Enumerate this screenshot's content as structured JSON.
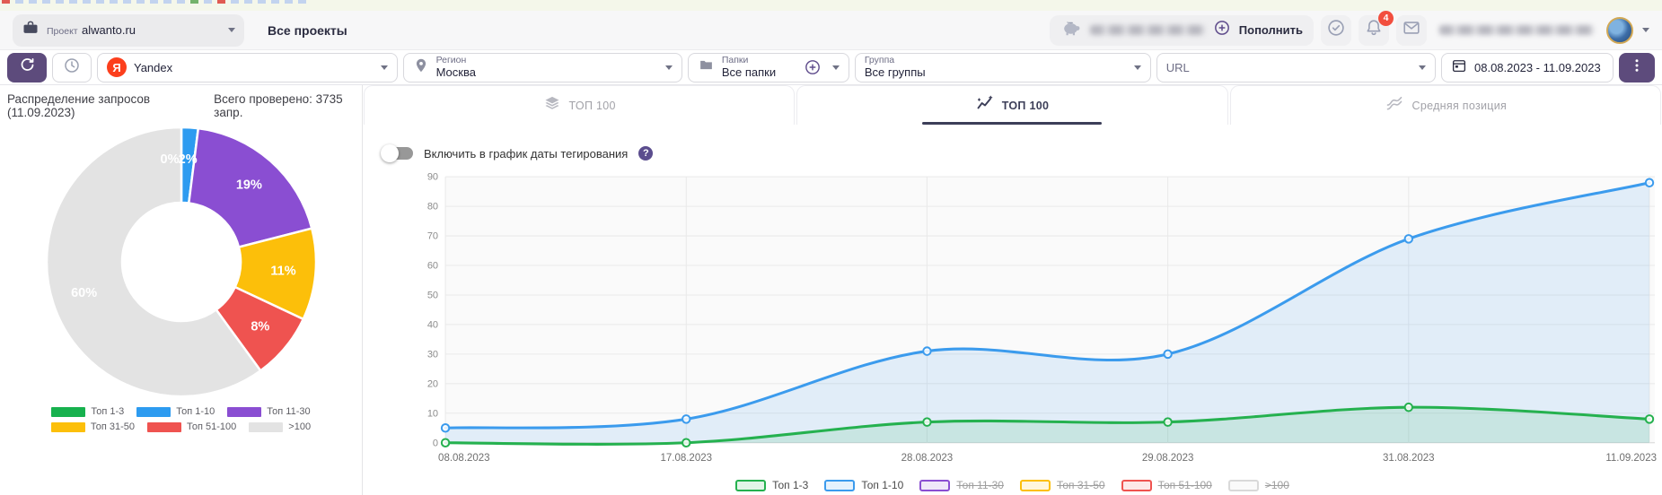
{
  "top": {
    "project_label": "Проект",
    "project_value": "alwanto.ru",
    "all_projects_label": "Все проекты",
    "topup_label": "Пополнить",
    "notification_count": "4"
  },
  "toolbar": {
    "search_engine": "Yandex",
    "region_label": "Регион",
    "region_value": "Москва",
    "folders_label": "Папки",
    "folders_value": "Все папки",
    "group_label": "Группа",
    "group_value": "Все группы",
    "url_placeholder": "URL",
    "date_range": "08.08.2023 - 11.09.2023"
  },
  "tabs": [
    {
      "label": "ТОП 100",
      "icon": "layers-icon",
      "active": false
    },
    {
      "label": "ТОП 100",
      "icon": "trend-icon",
      "active": true
    },
    {
      "label": "Средняя позиция",
      "icon": "average-position-icon",
      "active": false
    }
  ],
  "toggle": {
    "label": "Включить в график даты тегирования"
  },
  "chart_data": [
    {
      "type": "pie",
      "variant": "donut",
      "title": "Распределение запросов (11.09.2023)",
      "subtitle": "Всего проверено: 3735 запр.",
      "slices": [
        {
          "label": "Топ 1-3",
          "pct": 0,
          "color": "#17b14e"
        },
        {
          "label": "Топ 1-10",
          "pct": 2,
          "color": "#2d9bf0"
        },
        {
          "label": "Топ 11-30",
          "pct": 19,
          "color": "#8a4ed2"
        },
        {
          "label": "Топ 31-50",
          "pct": 11,
          "color": "#fcbf0a"
        },
        {
          "label": "Топ 51-100",
          "pct": 8,
          "color": "#ef5350"
        },
        {
          "label": ">100",
          "pct": 60,
          "color": "#e3e3e3"
        }
      ]
    },
    {
      "type": "line",
      "categories": [
        "08.08.2023",
        "17.08.2023",
        "28.08.2023",
        "29.08.2023",
        "31.08.2023",
        "11.09.2023"
      ],
      "ylim": [
        0,
        90
      ],
      "ytick_step": 10,
      "grid": true,
      "legend_position": "bottom",
      "series": [
        {
          "name": "Топ 1-3",
          "color": "#25b14f",
          "enabled": true,
          "values": [
            0,
            0,
            7,
            7,
            12,
            8
          ]
        },
        {
          "name": "Топ 1-10",
          "color": "#3b9bed",
          "enabled": true,
          "values": [
            5,
            8,
            31,
            30,
            69,
            88
          ]
        },
        {
          "name": "Топ 11-30",
          "color": "#8a4ed2",
          "enabled": false
        },
        {
          "name": "Топ 31-50",
          "color": "#fcbf0a",
          "enabled": false
        },
        {
          "name": "Топ 51-100",
          "color": "#ef5350",
          "enabled": false
        },
        {
          "name": ">100",
          "color": "#d9d9d9",
          "enabled": false
        }
      ]
    }
  ]
}
